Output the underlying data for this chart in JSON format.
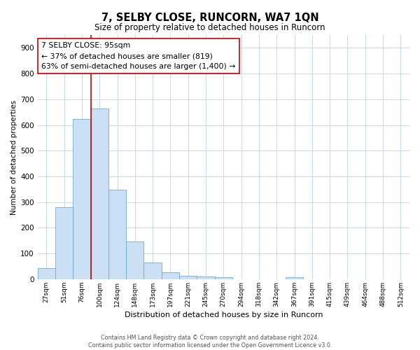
{
  "title": "7, SELBY CLOSE, RUNCORN, WA7 1QN",
  "subtitle": "Size of property relative to detached houses in Runcorn",
  "xlabel": "Distribution of detached houses by size in Runcorn",
  "ylabel": "Number of detached properties",
  "categories": [
    "27sqm",
    "51sqm",
    "76sqm",
    "100sqm",
    "124sqm",
    "148sqm",
    "173sqm",
    "197sqm",
    "221sqm",
    "245sqm",
    "270sqm",
    "294sqm",
    "318sqm",
    "342sqm",
    "367sqm",
    "391sqm",
    "415sqm",
    "439sqm",
    "464sqm",
    "488sqm",
    "512sqm"
  ],
  "values": [
    42,
    280,
    622,
    665,
    348,
    148,
    65,
    28,
    13,
    10,
    8,
    0,
    0,
    0,
    8,
    0,
    0,
    0,
    0,
    0,
    0
  ],
  "bar_color": "#cce0f5",
  "bar_edge_color": "#6aaddb",
  "vline_color": "#cc0000",
  "vline_index": 3,
  "annotation_line1": "7 SELBY CLOSE: 95sqm",
  "annotation_line2": "← 37% of detached houses are smaller (819)",
  "annotation_line3": "63% of semi-detached houses are larger (1,400) →",
  "annotation_box_color": "#ffffff",
  "annotation_box_edge": "#cc0000",
  "ylim": [
    0,
    950
  ],
  "yticks": [
    0,
    100,
    200,
    300,
    400,
    500,
    600,
    700,
    800,
    900
  ],
  "footer1": "Contains HM Land Registry data © Crown copyright and database right 2024.",
  "footer2": "Contains public sector information licensed under the Open Government Licence v3.0.",
  "bg_color": "#ffffff",
  "grid_color": "#c8d8ec"
}
